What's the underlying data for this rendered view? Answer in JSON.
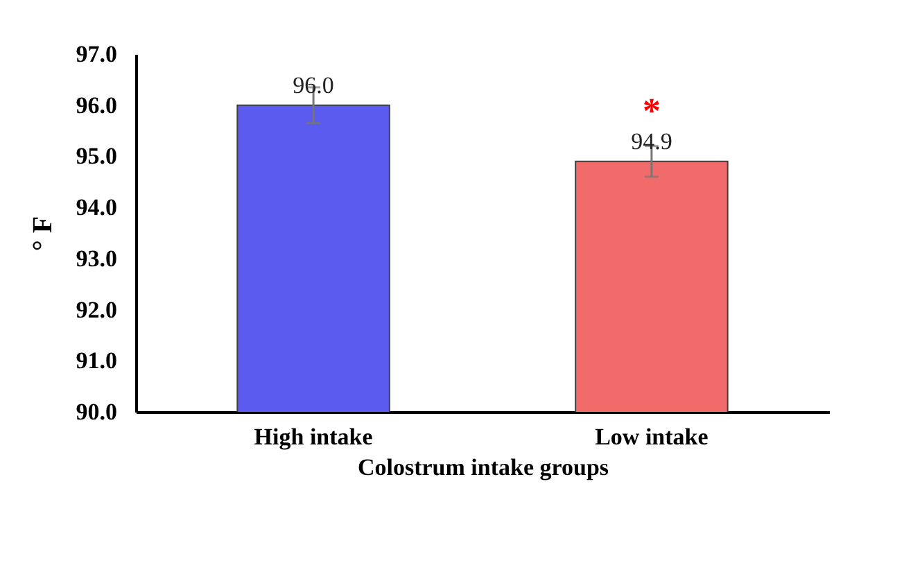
{
  "chart_data": {
    "type": "bar",
    "xlabel": "Colostrum intake groups",
    "ylabel": "° F",
    "categories": [
      "High intake",
      "Low intake"
    ],
    "values": [
      96.0,
      94.9
    ],
    "value_labels": [
      "96.0",
      "94.9"
    ],
    "errors": [
      0.35,
      0.3
    ],
    "colors": [
      "#5b5bf0",
      "#f26b6b"
    ],
    "ylim": [
      90,
      97
    ],
    "yticks": [
      {
        "value": 90,
        "label": "90.0"
      },
      {
        "value": 91,
        "label": "91.0"
      },
      {
        "value": 92,
        "label": "92.0"
      },
      {
        "value": 93,
        "label": "93.0"
      },
      {
        "value": 94,
        "label": "94.0"
      },
      {
        "value": 95,
        "label": "95.0"
      },
      {
        "value": 96,
        "label": "96.0"
      },
      {
        "value": 97,
        "label": "97.0"
      }
    ],
    "annotations": [
      "*"
    ]
  }
}
